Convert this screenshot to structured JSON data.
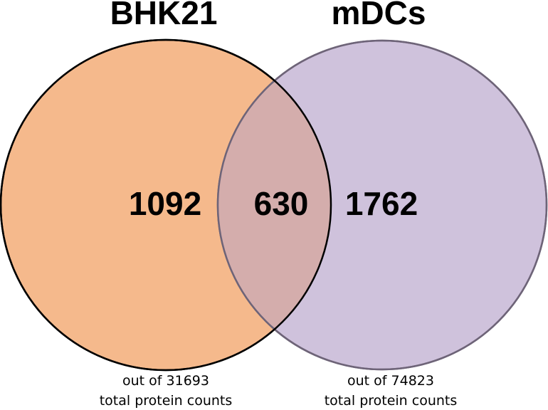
{
  "sets": [
    {
      "title": "BHK21",
      "unique_count": "1092",
      "note_line1": "out of 31693",
      "note_line2": "total protein counts",
      "fill_color": "#f5b98c",
      "stroke_color": "#000000"
    },
    {
      "title": "mDCs",
      "unique_count": "1762",
      "note_line1": "out of 74823",
      "note_line2": "total protein counts",
      "fill_color": "#cfc2dc",
      "stroke_color": "#6e6478"
    }
  ],
  "intersection": {
    "count": "630",
    "fill_color": "#d4adac"
  }
}
